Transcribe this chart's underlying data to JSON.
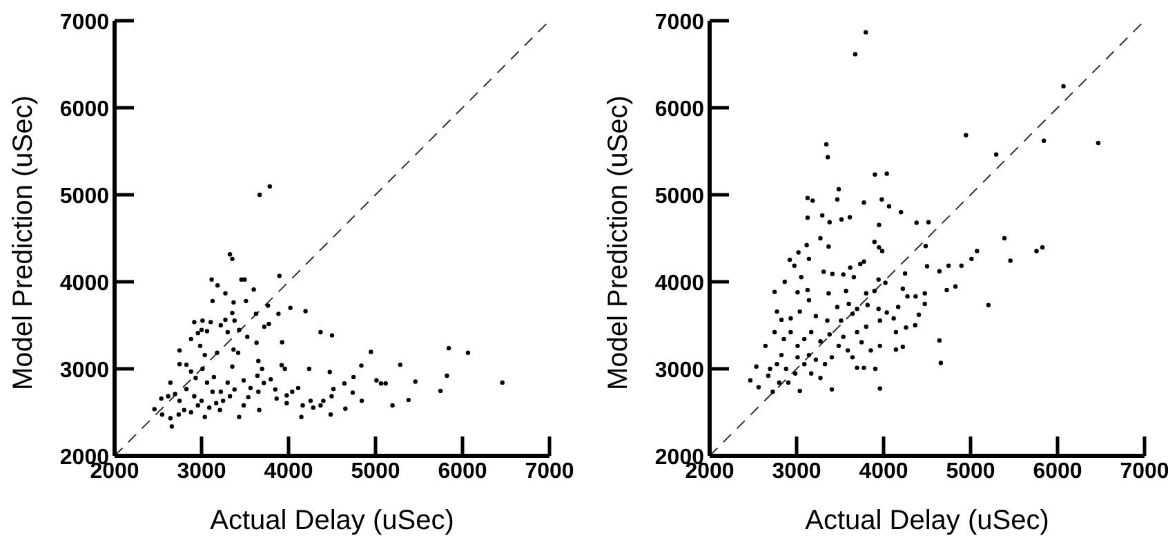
{
  "chart_data": [
    {
      "type": "scatter",
      "xlabel": "Actual Delay (uSec)",
      "ylabel": "Model Prediction (uSec)",
      "xlim": [
        2000,
        7000
      ],
      "ylim": [
        2000,
        7000
      ],
      "xticks": [
        2000,
        3000,
        4000,
        5000,
        6000,
        7000
      ],
      "yticks": [
        2000,
        3000,
        4000,
        5000,
        6000,
        7000
      ],
      "series": [
        {
          "marker": "circle",
          "color": "#000000",
          "x": [
            3668,
            3784,
            3326,
            3353,
            3116,
            3184,
            3458,
            3495,
            3895,
            3600,
            3126,
            3368,
            3510,
            3274,
            3763,
            4021,
            4195,
            3884,
            3626,
            3774,
            3721,
            3353,
            3274,
            3379,
            2916,
            3011,
            3105,
            4368,
            4500,
            3000,
            2958,
            2879,
            3063,
            3221,
            3300,
            3432,
            3526,
            3926,
            3632,
            2747,
            2984,
            3037,
            3179,
            3368,
            3353,
            3421,
            4947,
            5842,
            6063,
            5284,
            4837,
            4237,
            4474,
            3921,
            3958,
            3653,
            3695,
            2747,
            2826,
            2879,
            5821,
            5458,
            6458,
            5011,
            5063,
            5116,
            4747,
            4642,
            5747,
            5379,
            5195,
            4842,
            4737,
            4516,
            4495,
            4653,
            4484,
            4400,
            4368,
            4253,
            4284,
            4163,
            4147,
            4111,
            4042,
            3979,
            3979,
            3863,
            3847,
            3795,
            3716,
            3653,
            3663,
            3537,
            3484,
            3432,
            3379,
            3300,
            3326,
            3247,
            3211,
            3168,
            3126,
            3089,
            3037,
            3000,
            2958,
            2916,
            2879,
            2800,
            2747,
            2695,
            2642,
            2616,
            2537,
            2458,
            2547,
            2642,
            2658,
            2737,
            2932,
            3063,
            3142,
            3221,
            3011,
            2826,
            3484,
            3563,
            3642
          ],
          "values": [
            5000,
            5095,
            4316,
            4263,
            4026,
            3958,
            4026,
            4026,
            4068,
            3911,
            3779,
            3763,
            3779,
            3868,
            3726,
            3700,
            3663,
            3632,
            3632,
            3516,
            3484,
            3642,
            3563,
            3553,
            3537,
            3553,
            3537,
            3421,
            3384,
            3447,
            3411,
            3342,
            3432,
            3500,
            3421,
            3447,
            3368,
            3305,
            3300,
            3211,
            3263,
            3158,
            3184,
            3221,
            3026,
            3184,
            3195,
            3237,
            3184,
            3047,
            3037,
            3000,
            2963,
            3042,
            3000,
            3089,
            3000,
            3053,
            3047,
            2968,
            2921,
            2853,
            2842,
            2868,
            2832,
            2832,
            2905,
            2832,
            2747,
            2642,
            2579,
            2632,
            2726,
            2768,
            2684,
            2542,
            2474,
            2632,
            2579,
            2632,
            2553,
            2579,
            2447,
            2779,
            2737,
            2695,
            2605,
            2658,
            2763,
            2879,
            2837,
            2737,
            2526,
            2674,
            2579,
            2447,
            2763,
            2842,
            2684,
            2632,
            2526,
            2605,
            2737,
            2553,
            2447,
            2632,
            2579,
            2684,
            2500,
            2526,
            2632,
            2711,
            2842,
            2684,
            2658,
            2537,
            2474,
            2432,
            2337,
            2474,
            2895,
            2842,
            2905,
            2737,
            3000,
            2768,
            2868,
            2779,
            2921
          ]
        },
        {
          "type": "line",
          "color": "#333333",
          "line_style": "dashed",
          "x": [
            2000,
            7000
          ],
          "values": [
            2000,
            7000
          ]
        }
      ]
    },
    {
      "type": "scatter",
      "xlabel": "Actual Delay (uSec)",
      "ylabel": "Model Prediction (uSec)",
      "xlim": [
        2000,
        7000
      ],
      "ylim": [
        2000,
        7000
      ],
      "xticks": [
        2000,
        3000,
        4000,
        5000,
        6000,
        7000
      ],
      "yticks": [
        2000,
        3000,
        4000,
        5000,
        6000,
        7000
      ],
      "series": [
        {
          "marker": "circle",
          "color": "#000000",
          "x": [
            3795,
            3674,
            6068,
            4947,
            5842,
            6468,
            5295,
            3342,
            3358,
            3900,
            4037,
            3484,
            3468,
            3979,
            3774,
            4063,
            4200,
            3126,
            3184,
            3126,
            3295,
            3379,
            3516,
            3611,
            3947,
            4379,
            4516,
            3274,
            3368,
            3116,
            3021,
            2921,
            3895,
            3947,
            3984,
            4484,
            5389,
            5826,
            5758,
            5074,
            5011,
            5458,
            2974,
            3142,
            3311,
            3411,
            3537,
            3616,
            3774,
            3732,
            4500,
            4247,
            4642,
            4747,
            4895,
            4726,
            4826,
            5205,
            3053,
            2863,
            2747,
            3011,
            3126,
            3368,
            3568,
            3658,
            3942,
            4021,
            3800,
            3895,
            4221,
            4274,
            4368,
            4474,
            4474,
            4405,
            3468,
            3600,
            3695,
            3816,
            3942,
            4037,
            4116,
            4168,
            2774,
            2826,
            2932,
            3037,
            3142,
            3221,
            3353,
            3511,
            3642,
            4142,
            4258,
            4363,
            3958,
            3800,
            3695,
            4642,
            4658,
            4142,
            4221,
            3958,
            3853,
            3747,
            3642,
            3695,
            3774,
            3905,
            3958,
            3405,
            2642,
            2747,
            2853,
            2932,
            3011,
            3089,
            3168,
            3274,
            3379,
            3484,
            3537,
            3589,
            2537,
            2468,
            2563,
            2674,
            2726,
            2800,
            2879,
            2905,
            2984,
            3037,
            3089,
            3142,
            3168,
            3221,
            3274,
            3326,
            3405,
            3011,
            2826,
            2774,
            2695
          ],
          "values": [
            6868,
            6616,
            6247,
            5684,
            5621,
            5595,
            5463,
            5579,
            5432,
            5232,
            5242,
            5063,
            4947,
            4947,
            4911,
            4868,
            4800,
            4963,
            4932,
            4737,
            4763,
            4684,
            4716,
            4742,
            4653,
            4679,
            4684,
            4500,
            4405,
            4421,
            4337,
            4253,
            4458,
            4395,
            4353,
            4411,
            4500,
            4395,
            4353,
            4353,
            4263,
            4242,
            4184,
            4263,
            4116,
            4089,
            4084,
            4163,
            4232,
            4205,
            4179,
            4095,
            4121,
            4184,
            4184,
            3905,
            3947,
            3732,
            4053,
            4000,
            3884,
            3879,
            3905,
            3868,
            3895,
            4053,
            4026,
            3989,
            3868,
            3895,
            3921,
            3832,
            3832,
            3868,
            3747,
            3621,
            3710,
            3747,
            3689,
            3732,
            3689,
            3647,
            3579,
            3711,
            3658,
            3563,
            3579,
            3658,
            3789,
            3605,
            3553,
            3553,
            3632,
            3421,
            3474,
            3500,
            3553,
            3484,
            3421,
            3326,
            3068,
            3221,
            3253,
            3263,
            3211,
            3305,
            3132,
            3011,
            3011,
            3000,
            2774,
            2763,
            3263,
            3421,
            3342,
            3421,
            3263,
            3342,
            3421,
            3316,
            3395,
            3263,
            3368,
            3211,
            3026,
            2868,
            2789,
            2921,
            2737,
            2842,
            3000,
            2842,
            2947,
            2747,
            3053,
            3158,
            2947,
            3105,
            2895,
            3053,
            3132,
            3132,
            3158,
            3053,
            3000
          ]
        },
        {
          "type": "line",
          "color": "#333333",
          "line_style": "dashed",
          "x": [
            2000,
            7000
          ],
          "values": [
            2000,
            7000
          ]
        }
      ]
    }
  ]
}
